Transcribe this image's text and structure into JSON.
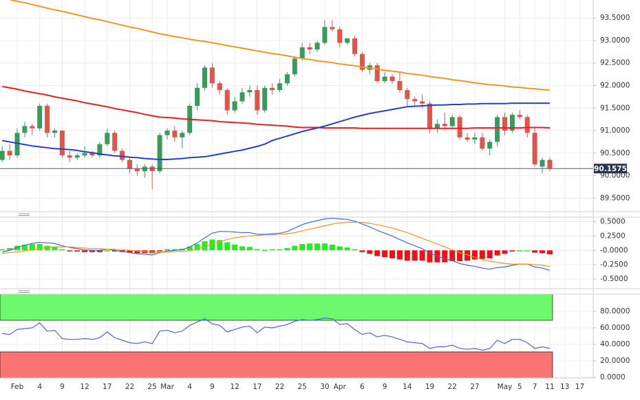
{
  "chart_data": [
    {
      "type": "candlestick",
      "categories": [
        null,
        null,
        "Feb",
        null,
        null,
        "4",
        null,
        null,
        "9",
        null,
        null,
        "12",
        null,
        null,
        "17",
        null,
        null,
        "22",
        null,
        null,
        "25",
        null,
        "Mar",
        null,
        null,
        "4",
        null,
        null,
        "9",
        null,
        null,
        "12",
        null,
        null,
        "17",
        null,
        null,
        "22",
        null,
        null,
        "25",
        null,
        null,
        "30",
        null,
        "Apr",
        null,
        null,
        "6",
        null,
        null,
        "9",
        null,
        null,
        "14",
        null,
        null,
        "19",
        null,
        null,
        "22",
        null,
        null,
        "27",
        null,
        null,
        null,
        "May",
        null,
        "5",
        null,
        "7",
        null,
        "11",
        null,
        "13",
        null,
        "17"
      ],
      "open": [
        90.35,
        90.55,
        90.45,
        90.95,
        91.1,
        91.05,
        91.55,
        90.95,
        91.0,
        90.45,
        90.4,
        90.45,
        90.5,
        90.45,
        90.7,
        90.95,
        90.55,
        90.35,
        90.15,
        90.1,
        90.2,
        90.1,
        90.9,
        91.0,
        90.85,
        90.95,
        91.55,
        91.95,
        92.4,
        92.05,
        91.9,
        91.45,
        91.65,
        91.85,
        91.9,
        91.45,
        91.95,
        91.9,
        92.05,
        92.25,
        92.6,
        92.85,
        92.8,
        92.95,
        93.3,
        93.25,
        92.95,
        93.05,
        92.7,
        92.35,
        92.45,
        92.1,
        92.2,
        92.1,
        91.9,
        91.7,
        91.65,
        91.6,
        91.05,
        91.15,
        91.1,
        91.3,
        90.85,
        90.8,
        90.85,
        90.6,
        90.75,
        91.3,
        91.0,
        91.35,
        91.3,
        90.95,
        90.2,
        90.35,
        null,
        null,
        null,
        null
      ],
      "high": [
        90.65,
        90.7,
        91.05,
        91.2,
        91.15,
        91.6,
        91.6,
        91.05,
        91.0,
        90.55,
        90.5,
        90.65,
        90.55,
        90.75,
        91.05,
        91.0,
        90.6,
        90.4,
        90.25,
        90.25,
        90.25,
        90.95,
        91.05,
        91.1,
        91.0,
        91.6,
        92.05,
        92.45,
        92.5,
        92.1,
        91.95,
        91.75,
        91.95,
        92.0,
        92.0,
        92.0,
        92.05,
        92.15,
        92.3,
        92.65,
        92.95,
        92.95,
        93.0,
        93.45,
        93.45,
        93.3,
        93.05,
        93.1,
        92.75,
        92.5,
        92.5,
        92.3,
        92.25,
        92.3,
        91.95,
        91.75,
        91.8,
        91.65,
        91.25,
        91.4,
        91.35,
        91.35,
        90.95,
        90.95,
        90.95,
        90.8,
        91.35,
        91.4,
        91.4,
        91.45,
        91.35,
        91.05,
        90.4,
        90.4,
        null,
        null,
        null,
        null
      ],
      "low": [
        90.3,
        90.35,
        90.4,
        90.85,
        90.9,
        91.0,
        90.85,
        90.85,
        90.4,
        90.3,
        90.35,
        90.4,
        90.4,
        90.4,
        90.65,
        90.5,
        90.3,
        90.05,
        90.0,
        89.95,
        89.7,
        90.05,
        90.8,
        90.75,
        90.6,
        90.9,
        91.45,
        91.9,
        91.95,
        91.8,
        91.35,
        91.4,
        91.6,
        91.75,
        91.35,
        91.4,
        91.8,
        91.85,
        92.0,
        92.2,
        92.55,
        92.7,
        92.75,
        92.9,
        93.2,
        92.85,
        92.9,
        92.65,
        92.3,
        92.25,
        92.05,
        92.05,
        92.05,
        91.85,
        91.55,
        91.55,
        91.5,
        90.95,
        90.95,
        91.0,
        91.05,
        90.8,
        90.75,
        90.7,
        90.55,
        90.45,
        90.65,
        90.9,
        90.95,
        91.25,
        90.85,
        90.2,
        90.05,
        90.1,
        null,
        null,
        null,
        null
      ],
      "close": [
        90.55,
        90.45,
        90.95,
        91.1,
        91.05,
        91.55,
        90.95,
        91.0,
        90.45,
        90.4,
        90.45,
        90.5,
        90.45,
        90.7,
        90.95,
        90.55,
        90.35,
        90.15,
        90.1,
        90.2,
        90.1,
        90.9,
        91.0,
        90.85,
        90.95,
        91.55,
        91.95,
        92.4,
        92.05,
        91.9,
        91.45,
        91.65,
        91.85,
        91.9,
        91.45,
        91.95,
        91.9,
        92.05,
        92.25,
        92.6,
        92.85,
        92.8,
        92.95,
        93.3,
        93.25,
        92.95,
        93.05,
        92.7,
        92.35,
        92.45,
        92.1,
        92.2,
        92.1,
        91.9,
        91.7,
        91.65,
        91.6,
        91.05,
        91.15,
        91.1,
        91.3,
        90.85,
        90.8,
        90.85,
        90.6,
        90.75,
        91.3,
        91.0,
        91.35,
        91.3,
        90.95,
        90.25,
        90.35,
        90.1575,
        null,
        null,
        null,
        null
      ],
      "up_color": "#3a9a5c",
      "down_color": "#e0544a",
      "lines": [
        {
          "color": "#f7931e",
          "values": [
            93.95,
            93.91,
            93.87,
            93.84,
            93.8,
            93.76,
            93.72,
            93.68,
            93.65,
            93.61,
            93.57,
            93.53,
            93.49,
            93.46,
            93.42,
            93.38,
            93.34,
            93.3,
            93.27,
            93.23,
            93.19,
            93.15,
            93.12,
            93.09,
            93.06,
            93.03,
            93.0,
            92.98,
            92.95,
            92.92,
            92.89,
            92.86,
            92.83,
            92.8,
            92.77,
            92.74,
            92.71,
            92.69,
            92.66,
            92.63,
            92.6,
            92.58,
            92.55,
            92.53,
            92.51,
            92.48,
            92.46,
            92.44,
            92.41,
            92.39,
            92.37,
            92.34,
            92.32,
            92.3,
            92.27,
            92.25,
            92.23,
            92.2,
            92.18,
            92.16,
            92.13,
            92.11,
            92.09,
            92.06,
            92.04,
            92.02,
            92.01,
            91.99,
            91.97,
            91.96,
            91.94,
            91.93,
            91.91,
            91.9,
            null,
            null,
            null,
            null
          ]
        },
        {
          "color": "#ee1c1c",
          "values": [
            91.98,
            91.95,
            91.92,
            91.88,
            91.85,
            91.82,
            91.79,
            91.75,
            91.72,
            91.69,
            91.66,
            91.62,
            91.59,
            91.56,
            91.53,
            91.49,
            91.46,
            91.43,
            91.4,
            91.36,
            91.33,
            91.3,
            91.29,
            91.28,
            91.26,
            91.25,
            91.24,
            91.23,
            91.22,
            91.2,
            91.19,
            91.18,
            91.17,
            91.16,
            91.14,
            91.13,
            91.12,
            91.11,
            91.1,
            91.08,
            91.07,
            91.07,
            91.07,
            91.06,
            91.06,
            91.06,
            91.06,
            91.06,
            91.05,
            91.05,
            91.05,
            91.05,
            91.05,
            91.05,
            91.05,
            91.05,
            91.05,
            91.05,
            91.05,
            91.05,
            91.05,
            91.05,
            91.05,
            91.06,
            91.06,
            91.06,
            91.06,
            91.06,
            91.06,
            91.06,
            91.07,
            91.07,
            91.07,
            91.06,
            null,
            null,
            null,
            null
          ]
        },
        {
          "color": "#1f3fd8",
          "values": [
            90.78,
            90.75,
            90.72,
            90.69,
            90.66,
            90.64,
            90.62,
            90.6,
            90.59,
            90.58,
            90.56,
            90.53,
            90.51,
            90.48,
            90.46,
            90.44,
            90.43,
            90.41,
            90.4,
            90.38,
            90.37,
            90.36,
            90.36,
            90.37,
            90.38,
            90.4,
            90.41,
            90.42,
            90.45,
            90.48,
            90.51,
            90.54,
            90.57,
            90.61,
            90.65,
            90.7,
            90.78,
            90.83,
            90.88,
            90.93,
            90.98,
            91.02,
            91.06,
            91.1,
            91.15,
            91.2,
            91.25,
            91.3,
            91.34,
            91.38,
            91.41,
            91.44,
            91.47,
            91.5,
            91.53,
            91.54,
            91.55,
            91.56,
            91.57,
            91.57,
            91.58,
            91.58,
            91.59,
            91.59,
            91.6,
            91.6,
            91.6,
            91.6,
            91.61,
            91.61,
            91.61,
            91.61,
            91.61,
            91.61,
            null,
            null,
            null,
            null
          ]
        }
      ],
      "ylim": [
        89.2,
        93.9
      ],
      "yticks": [
        {
          "value": 89.5,
          "label": "89.5000"
        },
        {
          "value": 90,
          "label": "90.0000"
        },
        {
          "value": 90.5,
          "label": "90.5000"
        },
        {
          "value": 91,
          "label": "91.0000"
        },
        {
          "value": 91.5,
          "label": "91.5000"
        },
        {
          "value": 92,
          "label": "92.0000"
        },
        {
          "value": 92.5,
          "label": "92.5000"
        },
        {
          "value": 93,
          "label": "93.0000"
        },
        {
          "value": 93.5,
          "label": "93.5000"
        }
      ],
      "grid": true
    },
    {
      "type": "bar",
      "values": [
        0.02,
        0.04,
        0.08,
        0.1,
        0.11,
        0.11,
        0.08,
        0.06,
        0.02,
        -0.01,
        -0.02,
        -0.03,
        -0.03,
        -0.03,
        0.0,
        -0.02,
        -0.03,
        -0.04,
        -0.05,
        -0.05,
        -0.05,
        -0.01,
        0.02,
        0.02,
        0.03,
        0.07,
        0.11,
        0.16,
        0.19,
        0.18,
        0.14,
        0.1,
        0.07,
        0.06,
        0.02,
        0.01,
        0.02,
        0.02,
        0.04,
        0.08,
        0.11,
        0.12,
        0.12,
        0.12,
        0.1,
        0.07,
        0.05,
        0.02,
        -0.03,
        -0.06,
        -0.1,
        -0.12,
        -0.14,
        -0.16,
        -0.18,
        -0.18,
        -0.18,
        -0.21,
        -0.21,
        -0.21,
        -0.19,
        -0.19,
        -0.18,
        -0.16,
        -0.15,
        -0.14,
        -0.09,
        -0.06,
        -0.02,
        0.0,
        0.0,
        -0.04,
        -0.05,
        -0.07,
        null,
        null,
        null,
        null
      ],
      "up_color": "#22ee22",
      "down_color": "#ee1111",
      "lines": [
        {
          "color": "#4169e1",
          "values": [
            -0.03,
            0.0,
            0.05,
            0.09,
            0.12,
            0.14,
            0.13,
            0.12,
            0.08,
            0.05,
            0.03,
            0.01,
            0.0,
            0.0,
            0.02,
            0.0,
            -0.02,
            -0.04,
            -0.06,
            -0.07,
            -0.08,
            -0.04,
            -0.01,
            0.0,
            0.01,
            0.06,
            0.13,
            0.22,
            0.3,
            0.33,
            0.33,
            0.32,
            0.31,
            0.31,
            0.28,
            0.28,
            0.29,
            0.3,
            0.33,
            0.39,
            0.45,
            0.49,
            0.52,
            0.55,
            0.56,
            0.55,
            0.54,
            0.51,
            0.46,
            0.41,
            0.35,
            0.3,
            0.25,
            0.19,
            0.13,
            0.08,
            0.03,
            -0.05,
            -0.1,
            -0.15,
            -0.18,
            -0.23,
            -0.26,
            -0.28,
            -0.31,
            -0.33,
            -0.3,
            -0.29,
            -0.26,
            -0.24,
            -0.24,
            -0.29,
            -0.31,
            -0.35,
            null,
            null,
            null,
            null
          ]
        },
        {
          "color": "#f7931e",
          "values": [
            -0.05,
            -0.04,
            -0.03,
            -0.01,
            0.01,
            0.03,
            0.05,
            0.06,
            0.06,
            0.06,
            0.05,
            0.04,
            0.03,
            0.03,
            0.02,
            0.02,
            0.01,
            0.0,
            -0.01,
            -0.02,
            -0.03,
            -0.03,
            -0.03,
            -0.02,
            -0.02,
            -0.01,
            0.02,
            0.06,
            0.11,
            0.15,
            0.19,
            0.22,
            0.24,
            0.25,
            0.26,
            0.27,
            0.27,
            0.28,
            0.29,
            0.31,
            0.34,
            0.37,
            0.4,
            0.43,
            0.46,
            0.48,
            0.49,
            0.49,
            0.49,
            0.47,
            0.45,
            0.42,
            0.39,
            0.35,
            0.31,
            0.26,
            0.21,
            0.16,
            0.11,
            0.06,
            0.01,
            -0.04,
            -0.08,
            -0.12,
            -0.16,
            -0.19,
            -0.21,
            -0.23,
            -0.24,
            -0.24,
            -0.24,
            -0.25,
            -0.26,
            -0.28,
            null,
            null,
            null,
            null
          ]
        }
      ],
      "ylim": [
        -0.67,
        0.58
      ],
      "yticks": [
        {
          "value": 0.5,
          "label": "0.5000"
        },
        {
          "value": 0.25,
          "label": "0.2500"
        },
        {
          "value": 0,
          "label": "-0.0000"
        },
        {
          "value": -0.25,
          "label": "-0.2500"
        },
        {
          "value": -0.5,
          "label": "-0.5000"
        }
      ],
      "grid": true
    },
    {
      "type": "line",
      "zones": [
        {
          "from": 70,
          "to": 100,
          "color": "#6ef86e"
        },
        {
          "from": 0,
          "to": 30,
          "color": "#fb7373"
        }
      ],
      "lines": [
        {
          "color": "#4169e1",
          "values": [
            53,
            52,
            58,
            59,
            60,
            66,
            56,
            57,
            47,
            46,
            46,
            47,
            46,
            48,
            55,
            48,
            45,
            42,
            41,
            43,
            41,
            56,
            57,
            54,
            56,
            63,
            67,
            71,
            65,
            63,
            55,
            58,
            61,
            62,
            54,
            61,
            60,
            62,
            64,
            68,
            70,
            69,
            70,
            72,
            71,
            64,
            65,
            58,
            52,
            54,
            49,
            51,
            49,
            46,
            43,
            42,
            41,
            35,
            37,
            37,
            39,
            35,
            34,
            35,
            33,
            35,
            45,
            41,
            46,
            46,
            42,
            35,
            37,
            35,
            null,
            null,
            null,
            null
          ]
        }
      ],
      "ylim": [
        0,
        100
      ],
      "yticks": [
        {
          "value": 0,
          "label": "0.0000"
        },
        {
          "value": 20,
          "label": "20.0000"
        },
        {
          "value": 40,
          "label": "40.0000"
        },
        {
          "value": 60,
          "label": "60.0000"
        },
        {
          "value": 80,
          "label": "80.0000"
        }
      ],
      "grid": true
    }
  ]
}
